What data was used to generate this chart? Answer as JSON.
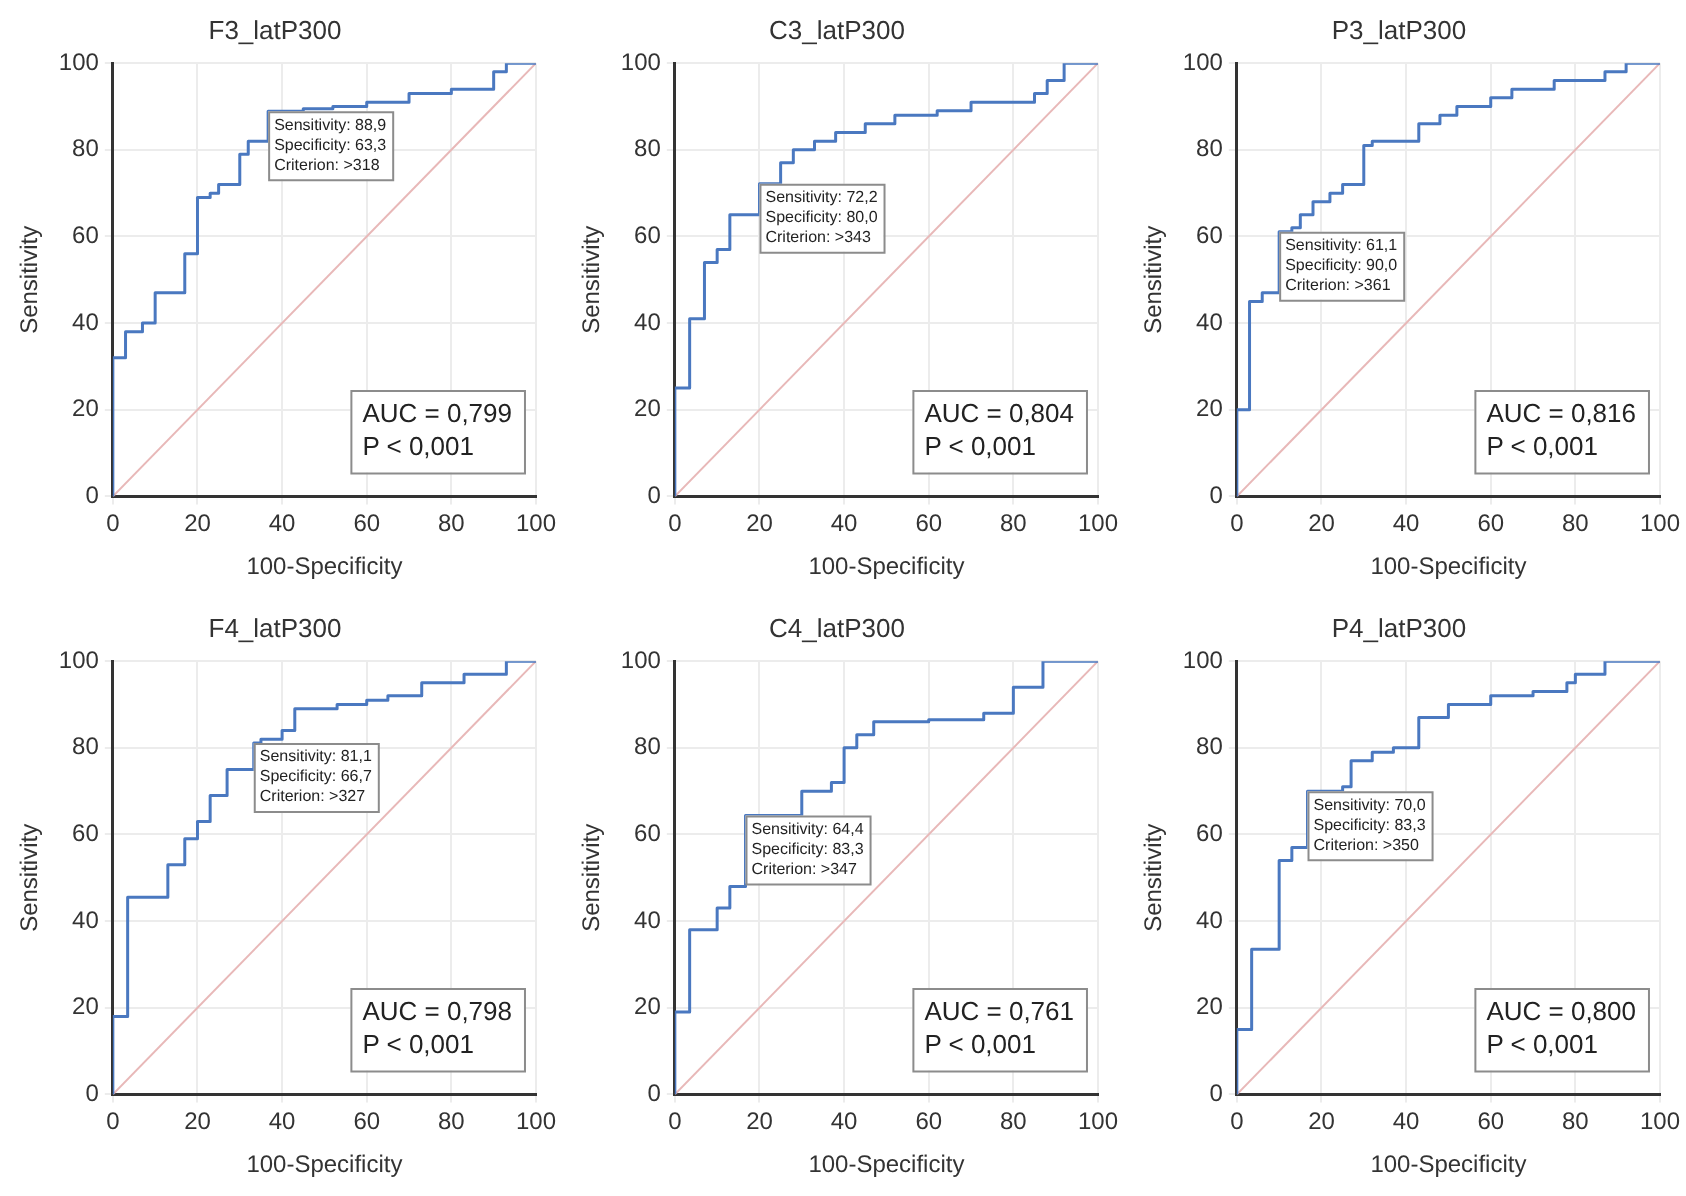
{
  "chart_data": [
    {
      "type": "step",
      "title": "F3_latP300",
      "xlabel": "100-Specificity",
      "ylabel": "Sensitivity",
      "xlim": [
        0,
        100
      ],
      "ylim": [
        0,
        100
      ],
      "xticks": [
        0,
        20,
        40,
        60,
        80,
        100
      ],
      "yticks": [
        0,
        20,
        40,
        60,
        80,
        100
      ],
      "grid": true,
      "marker": "none",
      "series": [
        {
          "color": "#4a78c0",
          "x": [
            0,
            0,
            3,
            7,
            10,
            17,
            17,
            20,
            23,
            25,
            30,
            32,
            36.7,
            45,
            52,
            60,
            70,
            80,
            90,
            93,
            100
          ],
          "values": [
            0,
            32,
            38,
            40,
            47,
            49,
            56,
            69,
            70,
            72,
            79,
            82,
            88.9,
            89.5,
            90,
            91,
            93,
            94,
            98,
            100,
            100
          ]
        },
        {
          "type": "line",
          "color": "#e8b8b8",
          "x": [
            0,
            100
          ],
          "values": [
            0,
            100
          ]
        }
      ],
      "annotations": [
        {
          "text": "Sensitivity: 88,9\nSpecificity: 63,3\nCriterion: >318",
          "x": 36.7,
          "y": 88.9
        },
        "AUC = 0,799\nP < 0,001"
      ]
    },
    {
      "type": "step",
      "title": "C3_latP300",
      "xlabel": "100-Specificity",
      "ylabel": "Sensitivity",
      "xlim": [
        0,
        100
      ],
      "ylim": [
        0,
        100
      ],
      "xticks": [
        0,
        20,
        40,
        60,
        80,
        100
      ],
      "yticks": [
        0,
        20,
        40,
        60,
        80,
        100
      ],
      "grid": true,
      "marker": "none",
      "series": [
        {
          "color": "#4a78c0",
          "x": [
            0,
            0,
            3.5,
            7,
            10,
            13,
            20,
            25,
            28,
            33,
            38,
            45,
            52,
            62,
            70,
            85,
            88,
            92,
            100
          ],
          "values": [
            0,
            25,
            41,
            54,
            57,
            65,
            72.2,
            77,
            80,
            82,
            84,
            86,
            88,
            89,
            91,
            93,
            96,
            100,
            100
          ]
        },
        {
          "type": "line",
          "color": "#e8b8b8",
          "x": [
            0,
            100
          ],
          "values": [
            0,
            100
          ]
        }
      ],
      "annotations": [
        {
          "text": "Sensitivity: 72,2\nSpecificity: 80,0\nCriterion: >343",
          "x": 20,
          "y": 72.2
        },
        "AUC = 0,804\nP < 0,001"
      ]
    },
    {
      "type": "step",
      "title": "P3_latP300",
      "xlabel": "100-Specificity",
      "ylabel": "Sensitivity",
      "xlim": [
        0,
        100
      ],
      "ylim": [
        0,
        100
      ],
      "xticks": [
        0,
        20,
        40,
        60,
        80,
        100
      ],
      "yticks": [
        0,
        20,
        40,
        60,
        80,
        100
      ],
      "grid": true,
      "marker": "none",
      "series": [
        {
          "color": "#4a78c0",
          "x": [
            0,
            0,
            3,
            3,
            6,
            10,
            13,
            15,
            18,
            22,
            25,
            30,
            32,
            43,
            48,
            52,
            60,
            65,
            75,
            87,
            92,
            100
          ],
          "values": [
            0,
            20,
            23,
            45,
            47,
            61.1,
            62,
            65,
            68,
            70,
            72,
            81,
            82,
            86,
            88,
            90,
            92,
            94,
            96,
            98,
            100,
            100
          ]
        },
        {
          "type": "line",
          "color": "#e8b8b8",
          "x": [
            0,
            100
          ],
          "values": [
            0,
            100
          ]
        }
      ],
      "annotations": [
        {
          "text": "Sensitivity: 61,1\nSpecificity: 90,0\nCriterion: >361",
          "x": 10,
          "y": 61.1
        },
        "AUC = 0,816\nP < 0,001"
      ]
    },
    {
      "type": "step",
      "title": "F4_latP300",
      "xlabel": "100-Specificity",
      "ylabel": "Sensitivity",
      "xlim": [
        0,
        100
      ],
      "ylim": [
        0,
        100
      ],
      "xticks": [
        0,
        20,
        40,
        60,
        80,
        100
      ],
      "yticks": [
        0,
        20,
        40,
        60,
        80,
        100
      ],
      "grid": true,
      "marker": "none",
      "series": [
        {
          "color": "#4a78c0",
          "x": [
            0,
            0,
            3.5,
            13,
            17,
            20,
            23,
            27,
            33.3,
            35,
            40,
            43,
            53,
            60,
            65,
            73,
            83,
            93,
            100
          ],
          "values": [
            0,
            18,
            45.5,
            53,
            59,
            63,
            69,
            75,
            81.1,
            82,
            84,
            89,
            90,
            91,
            92,
            95,
            97,
            100,
            100
          ]
        },
        {
          "type": "line",
          "color": "#e8b8b8",
          "x": [
            0,
            100
          ],
          "values": [
            0,
            100
          ]
        }
      ],
      "annotations": [
        {
          "text": "Sensitivity: 81,1\nSpecificity: 66,7\nCriterion: >327",
          "x": 33.3,
          "y": 81.1
        },
        "AUC = 0,798\nP < 0,001"
      ]
    },
    {
      "type": "step",
      "title": "C4_latP300",
      "xlabel": "100-Specificity",
      "ylabel": "Sensitivity",
      "xlim": [
        0,
        100
      ],
      "ylim": [
        0,
        100
      ],
      "xticks": [
        0,
        20,
        40,
        60,
        80,
        100
      ],
      "yticks": [
        0,
        20,
        40,
        60,
        80,
        100
      ],
      "grid": true,
      "marker": "none",
      "series": [
        {
          "color": "#4a78c0",
          "x": [
            0,
            0,
            3.5,
            10,
            13,
            16.7,
            30,
            37,
            40,
            43,
            47,
            60,
            73,
            80,
            87,
            100
          ],
          "values": [
            0,
            19,
            38,
            43,
            48,
            64.4,
            70,
            72,
            80,
            83,
            86,
            86.5,
            88,
            94,
            100,
            100
          ]
        },
        {
          "type": "line",
          "color": "#e8b8b8",
          "x": [
            0,
            100
          ],
          "values": [
            0,
            100
          ]
        }
      ],
      "annotations": [
        {
          "text": "Sensitivity: 64,4\nSpecificity: 83,3\nCriterion: >347",
          "x": 16.7,
          "y": 64.4
        },
        "AUC = 0,761\nP < 0,001"
      ]
    },
    {
      "type": "step",
      "title": "P4_latP300",
      "xlabel": "100-Specificity",
      "ylabel": "Sensitivity",
      "xlim": [
        0,
        100
      ],
      "ylim": [
        0,
        100
      ],
      "xticks": [
        0,
        20,
        40,
        60,
        80,
        100
      ],
      "yticks": [
        0,
        20,
        40,
        60,
        80,
        100
      ],
      "grid": true,
      "marker": "none",
      "series": [
        {
          "color": "#4a78c0",
          "x": [
            0,
            0,
            3.5,
            10,
            13,
            16.7,
            25,
            27,
            32,
            37,
            43,
            50,
            60,
            70,
            78,
            80,
            87,
            100
          ],
          "values": [
            0,
            15,
            33.5,
            54,
            57,
            70,
            71,
            77,
            79,
            80,
            87,
            90,
            92,
            93,
            95,
            97,
            100,
            100
          ]
        },
        {
          "type": "line",
          "color": "#e8b8b8",
          "x": [
            0,
            100
          ],
          "values": [
            0,
            100
          ]
        }
      ],
      "annotations": [
        {
          "text": "Sensitivity: 70,0\nSpecificity: 83,3\nCriterion: >350",
          "x": 16.7,
          "y": 70
        },
        "AUC = 0,800\nP < 0,001"
      ]
    }
  ]
}
